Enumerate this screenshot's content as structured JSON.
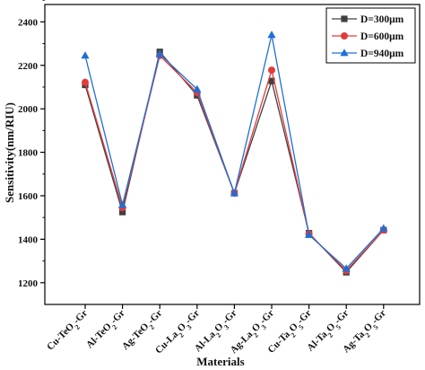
{
  "chart_data": {
    "type": "line",
    "title": "",
    "xlabel": "Materials",
    "ylabel": "Sensitivity(nm/RIU)",
    "categories": [
      [
        "Cu-TeO",
        {
          "sub": "2"
        },
        "-Gr"
      ],
      [
        "Al-TeO",
        {
          "sub": "2"
        },
        "-Gr"
      ],
      [
        "Ag-TeO",
        {
          "sub": "2"
        },
        "-Gr"
      ],
      [
        "Cu-La",
        {
          "sub": "2"
        },
        "O",
        {
          "sub": "3"
        },
        "-Gr"
      ],
      [
        "Al-La",
        {
          "sub": "2"
        },
        "O",
        {
          "sub": "3"
        },
        "-Gr"
      ],
      [
        "Ag-La",
        {
          "sub": "2"
        },
        "O",
        {
          "sub": "3"
        },
        "-Gr"
      ],
      [
        "Cu-Ta",
        {
          "sub": "2"
        },
        "O",
        {
          "sub": "5"
        },
        "-Gr"
      ],
      [
        "Al-Ta",
        {
          "sub": "2"
        },
        "O",
        {
          "sub": "5"
        },
        "-Gr"
      ],
      [
        "Ag-Ta",
        {
          "sub": "2"
        },
        "O",
        {
          "sub": "5"
        },
        "-Gr"
      ]
    ],
    "ylim": [
      1100,
      2480
    ],
    "yticks": [
      1200,
      1400,
      1600,
      1800,
      2000,
      2200,
      2400
    ],
    "legend_position": "top-right",
    "grid": false,
    "series": [
      {
        "name": "D=300μm",
        "color": "#404040",
        "marker": "square",
        "values": [
          2110,
          1525,
          2262,
          2062,
          1612,
          2128,
          1428,
          1248,
          1442
        ]
      },
      {
        "name": "D=600μm",
        "color": "#e23b3b",
        "marker": "circle",
        "values": [
          2122,
          1545,
          2245,
          2075,
          1612,
          2178,
          1425,
          1255,
          1442
        ]
      },
      {
        "name": "D=940μm",
        "color": "#1e6fd6",
        "marker": "triangle",
        "values": [
          2245,
          1558,
          2252,
          2090,
          1612,
          2340,
          1420,
          1265,
          1450
        ]
      }
    ]
  }
}
